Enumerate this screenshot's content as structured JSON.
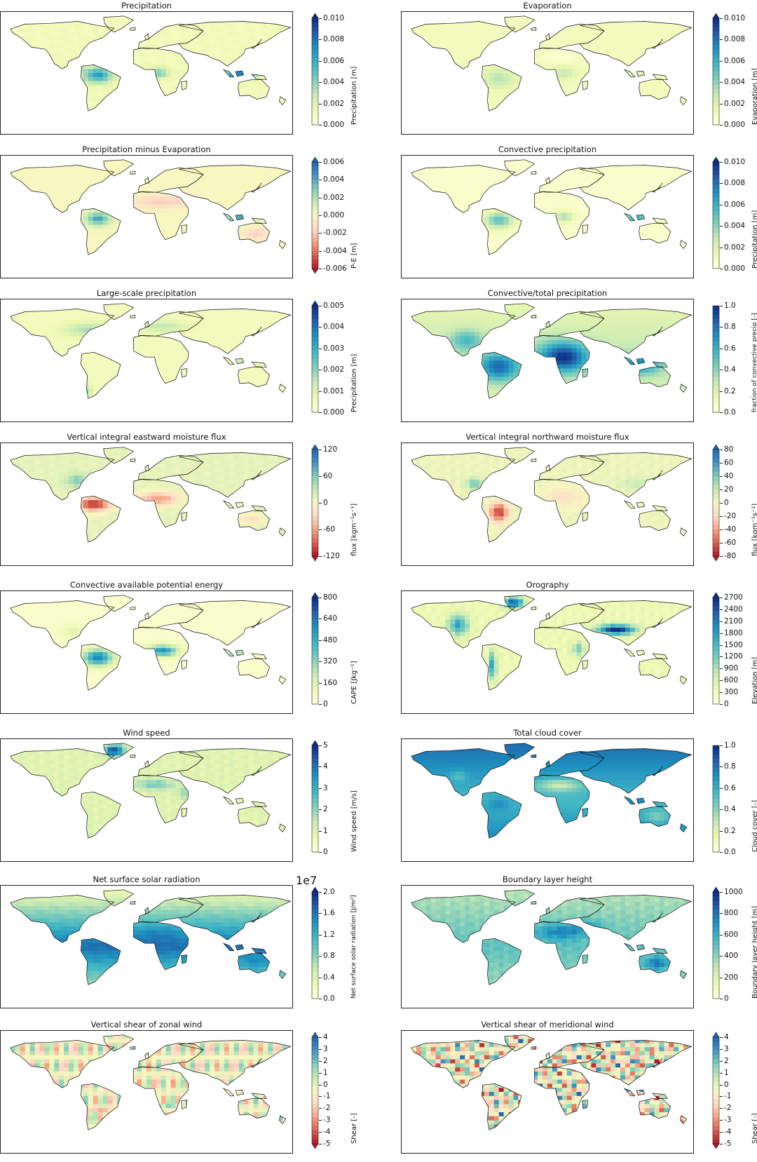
{
  "figure": {
    "panels": [
      {
        "title": "Precipitation",
        "colorbar": {
          "label": "Precipitation [m]",
          "ticks": [
            "0.010",
            "0.008",
            "0.006",
            "0.004",
            "0.002",
            "0.000"
          ],
          "cmap": "ylgnbu",
          "extend": "max"
        },
        "pattern": "wet_tropics"
      },
      {
        "title": "Evaporation",
        "colorbar": {
          "label": "Evaporation [m]",
          "ticks": [
            "0.010",
            "0.008",
            "0.006",
            "0.004",
            "0.002",
            "0.000"
          ],
          "cmap": "ylgnbu",
          "extend": "max"
        },
        "pattern": "mild"
      },
      {
        "title": "Precipitation minus Evaporation",
        "colorbar": {
          "label": "P-E [m]",
          "ticks": [
            "0.006",
            "0.004",
            "0.002",
            "0.000",
            "-0.002",
            "-0.004",
            "-0.006"
          ],
          "cmap": "spectral",
          "extend": "both"
        },
        "pattern": "pe"
      },
      {
        "title": "Convective precipitation",
        "colorbar": {
          "label": "Precipitation [m]",
          "ticks": [
            "0.010",
            "0.008",
            "0.006",
            "0.004",
            "0.002",
            "0.000"
          ],
          "cmap": "ylgnbu",
          "extend": "max"
        },
        "pattern": "wet_tropics_light"
      },
      {
        "title": "Large-scale precipitation",
        "colorbar": {
          "label": "Precipitation [m]",
          "ticks": [
            "0.005",
            "0.004",
            "0.003",
            "0.002",
            "0.001",
            "0.000"
          ],
          "cmap": "ylgnbu",
          "extend": "max"
        },
        "pattern": "midlat"
      },
      {
        "title": "Convective/total precipitation",
        "colorbar": {
          "label": "fraction of convective precip [-]",
          "ticks": [
            "1.0",
            "0.8",
            "0.6",
            "0.4",
            "0.2",
            "0.0"
          ],
          "cmap": "ylgnbu",
          "extend": "none"
        },
        "pattern": "tropics_strong"
      },
      {
        "title": "Vertical integral eastward moisture flux",
        "colorbar": {
          "label": "flux [kgm⁻¹s⁻¹]",
          "ticks": [
            "120",
            "60",
            "0",
            "-60",
            "-120"
          ],
          "cmap": "spectral",
          "extend": "both"
        },
        "pattern": "flux_east"
      },
      {
        "title": "Vertical integral northward moisture flux",
        "colorbar": {
          "label": "flux [kgm⁻¹s⁻¹]",
          "ticks": [
            "80",
            "60",
            "40",
            "20",
            "0",
            "-20",
            "-40",
            "-60",
            "-80"
          ],
          "cmap": "spectral",
          "extend": "both"
        },
        "pattern": "flux_north"
      },
      {
        "title": "Convective available potential energy",
        "colorbar": {
          "label": "CAPE [Jkg⁻¹]",
          "ticks": [
            "800",
            "640",
            "480",
            "320",
            "160",
            "0"
          ],
          "cmap": "ylgnbu",
          "extend": "max"
        },
        "pattern": "cape"
      },
      {
        "title": "Orography",
        "colorbar": {
          "label": "Elevation [m]",
          "ticks": [
            "2700",
            "2400",
            "2100",
            "1800",
            "1500",
            "1200",
            "900",
            "600",
            "300",
            "0"
          ],
          "cmap": "ylgnbu",
          "extend": "max"
        },
        "pattern": "orography"
      },
      {
        "title": "Wind speed",
        "colorbar": {
          "label": "Wind speed [m/s]",
          "ticks": [
            "5",
            "4",
            "3",
            "2",
            "1",
            "0"
          ],
          "cmap": "ylgnbu",
          "extend": "max"
        },
        "pattern": "wind"
      },
      {
        "title": "Total cloud cover",
        "colorbar": {
          "label": "Cloud cover [-]",
          "ticks": [
            "1.0",
            "0.8",
            "0.6",
            "0.4",
            "0.2",
            "0.0"
          ],
          "cmap": "ylgnbu",
          "extend": "none"
        },
        "pattern": "cloud"
      },
      {
        "title": "Net surface solar radiation",
        "colorbar": {
          "label": "Net surface solar radiation [J/m²]",
          "ticks": [
            "2.0",
            "1.6",
            "1.2",
            "0.8",
            "0.4",
            "0.0"
          ],
          "cmap": "ylgnbu",
          "extend": "max",
          "multiplier": "1e7"
        },
        "pattern": "solar"
      },
      {
        "title": "Boundary layer height",
        "colorbar": {
          "label": "Boundary layer height [m]",
          "ticks": [
            "1000",
            "800",
            "600",
            "400",
            "200",
            "0"
          ],
          "cmap": "ylgnbu",
          "extend": "max"
        },
        "pattern": "blh"
      },
      {
        "title": "Vertical shear of zonal wind",
        "colorbar": {
          "label": "Shear [-]",
          "ticks": [
            "4",
            "3",
            "2",
            "1",
            "0",
            "-1",
            "-2",
            "-3",
            "-4",
            "-5"
          ],
          "cmap": "spectral",
          "extend": "both"
        },
        "pattern": "shear_u"
      },
      {
        "title": "Vertical shear of meridional wind",
        "colorbar": {
          "label": "Shear [-]",
          "ticks": [
            "4",
            "3",
            "2",
            "1",
            "0",
            "-1",
            "-2",
            "-3",
            "-4",
            "-5"
          ],
          "cmap": "spectral",
          "extend": "both"
        },
        "pattern": "shear_v"
      }
    ]
  }
}
